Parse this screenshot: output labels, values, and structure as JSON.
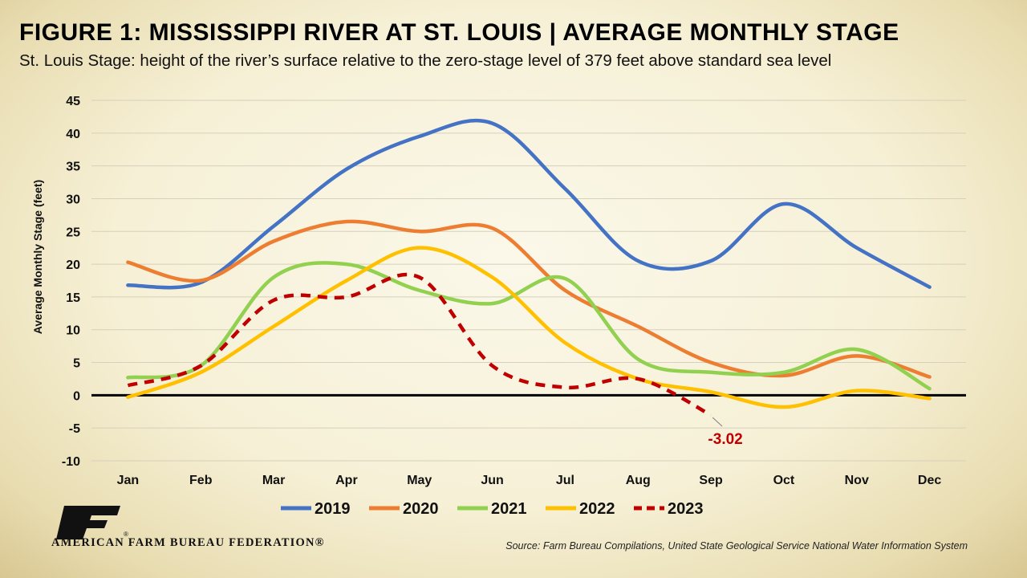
{
  "header": {
    "title": "FIGURE 1: MISSISSIPPI RIVER AT ST. LOUIS | AVERAGE MONTHLY STAGE",
    "subtitle": "St. Louis Stage: height of the river’s surface relative to the zero-stage level of 379 feet above standard sea level"
  },
  "chart_data": {
    "type": "line",
    "title": "FIGURE 1: MISSISSIPPI RIVER AT ST. LOUIS | AVERAGE MONTHLY STAGE",
    "subtitle": "St. Louis Stage: height of the river’s surface relative to the zero-stage level of 379 feet above standard sea level",
    "xlabel": "",
    "ylabel": "Average Monthly Stage (feet)",
    "categories": [
      "Jan",
      "Feb",
      "Mar",
      "Apr",
      "May",
      "Jun",
      "Jul",
      "Aug",
      "Sep",
      "Oct",
      "Nov",
      "Dec"
    ],
    "ylim": [
      -10,
      45
    ],
    "yticks": [
      45,
      40,
      35,
      30,
      25,
      20,
      15,
      10,
      5,
      0,
      -5,
      -10
    ],
    "grid": true,
    "legend": "bottom",
    "series": [
      {
        "name": "2019",
        "color": "#4472c4",
        "dashed": false,
        "values": [
          16.8,
          17.2,
          25.8,
          34.5,
          39.5,
          41.5,
          31.5,
          20.5,
          20.5,
          29.2,
          22.5,
          16.5
        ]
      },
      {
        "name": "2020",
        "color": "#ed7d31",
        "dashed": false,
        "values": [
          20.3,
          17.5,
          23.5,
          26.5,
          25.0,
          25.5,
          16.0,
          10.5,
          5.0,
          3.0,
          6.0,
          2.8
        ]
      },
      {
        "name": "2021",
        "color": "#92d050",
        "dashed": false,
        "values": [
          2.7,
          4.5,
          18.0,
          20.0,
          16.0,
          14.0,
          17.8,
          5.5,
          3.5,
          3.5,
          7.0,
          1.0
        ]
      },
      {
        "name": "2022",
        "color": "#ffc000",
        "dashed": false,
        "values": [
          -0.3,
          3.5,
          10.5,
          17.5,
          22.5,
          18.0,
          8.0,
          2.5,
          0.5,
          -1.8,
          0.7,
          -0.5
        ]
      },
      {
        "name": "2023",
        "color": "#c00000",
        "dashed": true,
        "values": [
          1.5,
          4.5,
          14.5,
          15.0,
          18.0,
          4.5,
          1.2,
          2.5,
          -3.02,
          null,
          null,
          null
        ]
      }
    ],
    "annotation": {
      "text": "-3.02",
      "series": "2023",
      "category": "Sep",
      "color": "#c00000"
    },
    "source": "Source: Farm Bureau Compilations, United State Geological Service National Water Information System"
  },
  "footer": {
    "organization": "AMERICAN FARM BUREAU FEDERATION®",
    "logo_text": "FB",
    "source": "Source: Farm Bureau Compilations, United State Geological Service National Water Information System"
  }
}
